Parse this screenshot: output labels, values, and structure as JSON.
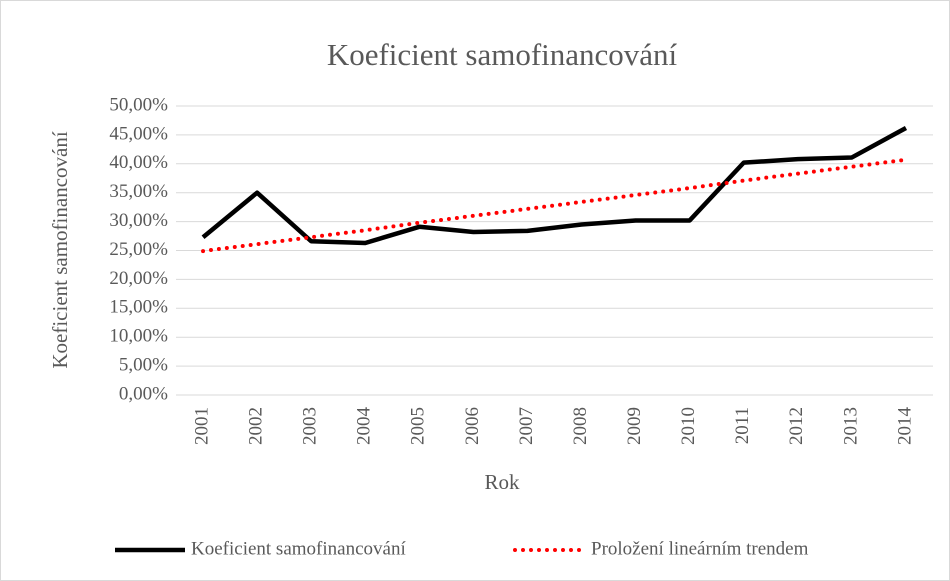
{
  "chart_data": {
    "type": "line",
    "title": "Koeficient samofinancování",
    "xlabel": "Rok",
    "ylabel": "Koeficient samofinancování",
    "categories": [
      "2001",
      "2002",
      "2003",
      "2004",
      "2005",
      "2006",
      "2007",
      "2008",
      "2009",
      "2010",
      "2011",
      "2012",
      "2013",
      "2014"
    ],
    "series": [
      {
        "name": "Koeficient samofinancování",
        "color": "#000000",
        "dash": "solid",
        "values": [
          27.3,
          35.0,
          26.6,
          26.3,
          29.1,
          28.2,
          28.4,
          29.5,
          30.2,
          30.2,
          40.2,
          40.8,
          41.1,
          46.2
        ]
      },
      {
        "name": "Proložení lineárním trendem",
        "color": "#ff0000",
        "dash": "dotted",
        "values": [
          24.9,
          26.1,
          27.3,
          28.5,
          29.8,
          31.0,
          32.2,
          33.4,
          34.6,
          35.8,
          37.1,
          38.3,
          39.5,
          40.7
        ]
      }
    ],
    "ylim": [
      0,
      50
    ],
    "yticks": [
      {
        "value": 0,
        "label": "0,00%"
      },
      {
        "value": 5,
        "label": "5,00%"
      },
      {
        "value": 10,
        "label": "10,00%"
      },
      {
        "value": 15,
        "label": "15,00%"
      },
      {
        "value": 20,
        "label": "20,00%"
      },
      {
        "value": 25,
        "label": "25,00%"
      },
      {
        "value": 30,
        "label": "30,00%"
      },
      {
        "value": 35,
        "label": "35,00%"
      },
      {
        "value": 40,
        "label": "40,00%"
      },
      {
        "value": 45,
        "label": "45,00%"
      },
      {
        "value": 50,
        "label": "50,00%"
      }
    ],
    "grid": true,
    "legend": "bottom"
  }
}
